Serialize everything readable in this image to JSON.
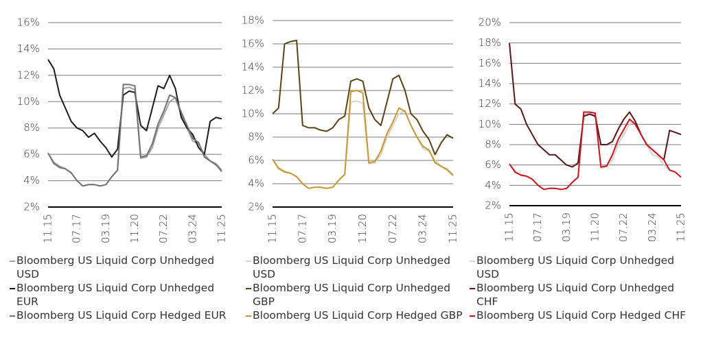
{
  "chart_data": [
    {
      "type": "line",
      "categories": [
        "11.15",
        null,
        null,
        null,
        null,
        "07.17",
        null,
        null,
        null,
        null,
        "03.19",
        null,
        null,
        null,
        null,
        "11.20",
        null,
        null,
        null,
        null,
        "07.22",
        null,
        null,
        null,
        null,
        "03.24",
        null,
        null,
        null,
        null,
        "11.25"
      ],
      "ylim": [
        2,
        16
      ],
      "yticks": [
        {
          "value": 2,
          "label": "2%"
        },
        {
          "value": 4,
          "label": "4%"
        },
        {
          "value": 6,
          "label": "6%"
        },
        {
          "value": 8,
          "label": "8%"
        },
        {
          "value": 10,
          "label": "10%"
        },
        {
          "value": 12,
          "label": "12%"
        },
        {
          "value": 14,
          "label": "14%"
        },
        {
          "value": 16,
          "label": "16%"
        }
      ],
      "grid": true,
      "series": [
        {
          "name": "Bloomberg US Liquid Corp Unhedged USD",
          "color": "#a3a39d",
          "values": [
            6.1,
            5.4,
            5.1,
            4.9,
            4.6,
            4.0,
            3.6,
            3.7,
            3.7,
            3.6,
            3.7,
            4.3,
            4.8,
            11.0,
            11.1,
            10.9,
            5.7,
            5.8,
            6.5,
            8.0,
            9.0,
            10.0,
            10.3,
            9.0,
            8.0,
            7.0,
            6.8,
            6.0,
            5.5,
            5.3,
            4.8
          ]
        },
        {
          "name": "Bloomberg US Liquid Corp Unhedged EUR",
          "color": "#1a1a1a",
          "values": [
            13.2,
            12.5,
            10.5,
            9.5,
            8.5,
            8.0,
            7.8,
            7.3,
            7.6,
            7.0,
            6.5,
            5.8,
            6.4,
            10.5,
            10.8,
            10.7,
            8.2,
            7.8,
            9.5,
            11.2,
            11.0,
            12.0,
            11.0,
            8.8,
            8.0,
            7.5,
            6.5,
            6.0,
            8.5,
            8.8,
            8.7
          ]
        },
        {
          "name": "Bloomberg US Liquid Corp Hedged EUR",
          "color": "#707070",
          "values": [
            6.1,
            5.3,
            5.0,
            4.9,
            4.6,
            4.0,
            3.6,
            3.7,
            3.7,
            3.6,
            3.7,
            4.3,
            4.8,
            11.3,
            11.3,
            11.2,
            5.8,
            5.9,
            6.8,
            8.3,
            9.3,
            10.5,
            10.3,
            9.2,
            8.2,
            7.2,
            6.9,
            5.8,
            5.5,
            5.2,
            4.7
          ]
        }
      ]
    },
    {
      "type": "line",
      "categories": [
        "11.15",
        null,
        null,
        null,
        null,
        "07.17",
        null,
        null,
        null,
        null,
        "03.19",
        null,
        null,
        null,
        null,
        "11.20",
        null,
        null,
        null,
        null,
        "07.22",
        null,
        null,
        null,
        null,
        "03.24",
        null,
        null,
        null,
        null,
        "11.25"
      ],
      "ylim": [
        2,
        18
      ],
      "yticks": [
        {
          "value": 2,
          "label": "2%"
        },
        {
          "value": 4,
          "label": "4%"
        },
        {
          "value": 6,
          "label": "6%"
        },
        {
          "value": 8,
          "label": "8%"
        },
        {
          "value": 10,
          "label": "10%"
        },
        {
          "value": 12,
          "label": "12%"
        },
        {
          "value": 14,
          "label": "14%"
        },
        {
          "value": 16,
          "label": "16%"
        },
        {
          "value": 18,
          "label": "18%"
        }
      ],
      "grid": true,
      "series": [
        {
          "name": "Bloomberg US Liquid Corp Unhedged USD",
          "color": "#d8d3c0",
          "values": [
            6.1,
            5.4,
            5.1,
            4.9,
            4.6,
            4.0,
            3.6,
            3.7,
            3.7,
            3.6,
            3.7,
            4.3,
            4.8,
            11.0,
            11.1,
            10.9,
            5.7,
            5.8,
            6.5,
            8.0,
            9.0,
            10.0,
            10.3,
            9.0,
            8.0,
            7.0,
            6.8,
            6.0,
            5.5,
            5.3,
            4.8
          ]
        },
        {
          "name": "Bloomberg US Liquid Corp Unhedged GBP",
          "color": "#5c4212",
          "values": [
            10.0,
            10.5,
            16.0,
            16.2,
            16.3,
            9.0,
            8.8,
            8.8,
            8.6,
            8.5,
            8.8,
            9.5,
            9.8,
            12.8,
            13.0,
            12.8,
            10.5,
            9.5,
            9.0,
            11.0,
            13.0,
            13.3,
            12.0,
            10.0,
            9.5,
            8.5,
            7.8,
            6.5,
            7.5,
            8.2,
            7.9
          ]
        },
        {
          "name": "Bloomberg US Liquid Corp Hedged GBP",
          "color": "#c8962e",
          "values": [
            6.1,
            5.3,
            5.0,
            4.9,
            4.6,
            4.0,
            3.6,
            3.7,
            3.7,
            3.6,
            3.7,
            4.3,
            4.8,
            11.9,
            12.0,
            11.8,
            5.8,
            5.9,
            6.8,
            8.3,
            9.3,
            10.5,
            10.2,
            9.0,
            8.0,
            7.2,
            6.9,
            5.8,
            5.5,
            5.2,
            4.7
          ]
        }
      ]
    },
    {
      "type": "line",
      "categories": [
        "11.15",
        null,
        null,
        null,
        null,
        "07.17",
        null,
        null,
        null,
        null,
        "03.19",
        null,
        null,
        null,
        null,
        "11.20",
        null,
        null,
        null,
        null,
        "07.22",
        null,
        null,
        null,
        null,
        "03.24",
        null,
        null,
        null,
        null,
        "11.25"
      ],
      "ylim": [
        2,
        20
      ],
      "yticks": [
        {
          "value": 2,
          "label": "2%"
        },
        {
          "value": 4,
          "label": "4%"
        },
        {
          "value": 6,
          "label": "6%"
        },
        {
          "value": 8,
          "label": "8%"
        },
        {
          "value": 10,
          "label": "10%"
        },
        {
          "value": 12,
          "label": "12%"
        },
        {
          "value": 14,
          "label": "14%"
        },
        {
          "value": 16,
          "label": "16%"
        },
        {
          "value": 18,
          "label": "18%"
        },
        {
          "value": 20,
          "label": "20%"
        }
      ],
      "grid": true,
      "series": [
        {
          "name": "Bloomberg US Liquid Corp Unhedged USD",
          "color": "#d4d4ce",
          "values": [
            6.1,
            5.4,
            5.1,
            4.9,
            4.6,
            4.0,
            3.6,
            3.7,
            3.7,
            3.6,
            3.7,
            4.3,
            4.8,
            11.0,
            11.1,
            10.9,
            5.7,
            5.8,
            6.5,
            8.0,
            9.0,
            10.0,
            10.3,
            9.0,
            8.0,
            7.0,
            6.8,
            6.0,
            5.5,
            5.3,
            4.8
          ]
        },
        {
          "name": "Bloomberg US Liquid Corp Unhedged CHF",
          "color": "#5a1418",
          "values": [
            18.0,
            12.0,
            11.5,
            10.0,
            9.0,
            8.0,
            7.5,
            7.0,
            7.0,
            6.5,
            6.0,
            5.8,
            6.2,
            10.8,
            11.0,
            10.8,
            8.0,
            8.0,
            8.3,
            9.5,
            10.5,
            11.2,
            10.3,
            9.0,
            8.0,
            7.5,
            7.0,
            6.5,
            9.4,
            9.2,
            9.0
          ]
        },
        {
          "name": "Bloomberg US Liquid Corp Hedged CHF",
          "color": "#d0101a",
          "values": [
            6.1,
            5.3,
            5.0,
            4.9,
            4.6,
            4.0,
            3.6,
            3.7,
            3.7,
            3.6,
            3.7,
            4.3,
            4.8,
            11.2,
            11.2,
            11.1,
            5.8,
            5.9,
            7.0,
            8.5,
            9.5,
            10.5,
            10.0,
            9.0,
            8.0,
            7.5,
            7.0,
            6.5,
            5.5,
            5.3,
            4.8
          ]
        }
      ]
    }
  ]
}
